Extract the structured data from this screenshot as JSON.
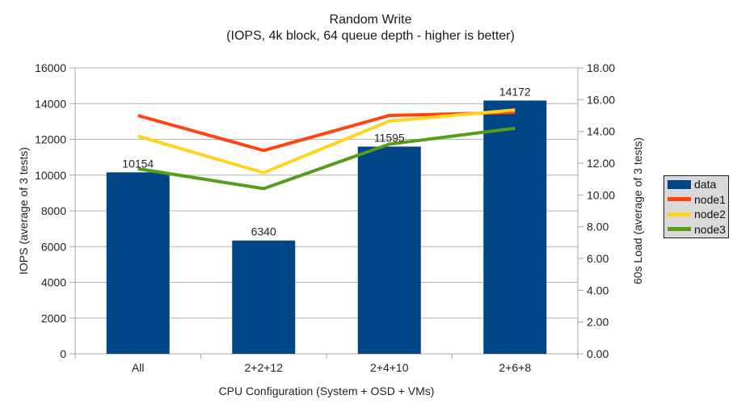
{
  "chart_data": {
    "type": "bar",
    "title": "Random Write",
    "subtitle": "(IOPS, 4k block, 64 queue depth - higher is better)",
    "categories": [
      "All",
      "2+2+12",
      "2+4+10",
      "2+6+8"
    ],
    "xlabel": "CPU Configuration (System + OSD + VMs)",
    "ylabel_left": "IOPS (average of 3 tests)",
    "ylabel_right": "60s Load (average of 3 tests)",
    "left_axis": {
      "min": 0,
      "max": 16000,
      "step": 2000,
      "tick_labels": [
        "16000",
        "14000",
        "12000",
        "10000",
        "8000",
        "6000",
        "4000",
        "2000",
        "0"
      ]
    },
    "right_axis": {
      "min": 0,
      "max": 18,
      "step": 2,
      "tick_labels": [
        "18.00",
        "16.00",
        "14.00",
        "12.00",
        "10.00",
        "8.00",
        "6.00",
        "4.00",
        "2.00",
        "0.00"
      ]
    },
    "series": [
      {
        "name": "data",
        "type": "bar",
        "axis": "left",
        "color": "#004586",
        "values": [
          10154,
          6340,
          11595,
          14172
        ],
        "data_labels": [
          "10154",
          "6340",
          "11595",
          "14172"
        ]
      },
      {
        "name": "node1",
        "type": "line",
        "axis": "right",
        "color": "#ff420e",
        "values": [
          15.0,
          12.8,
          15.0,
          15.2
        ]
      },
      {
        "name": "node2",
        "type": "line",
        "axis": "right",
        "color": "#ffd320",
        "values": [
          13.7,
          11.4,
          14.65,
          15.35
        ]
      },
      {
        "name": "node3",
        "type": "line",
        "axis": "right",
        "color": "#579d1c",
        "values": [
          11.65,
          10.4,
          13.2,
          14.2
        ]
      }
    ],
    "legend_position": "right",
    "grid": "horizontal",
    "colors": {
      "grid": "#b3b3b3",
      "axis": "#a6a6a6",
      "text": "#222222",
      "background": "#ffffff",
      "legend_bg": "#d9d9d9"
    }
  }
}
